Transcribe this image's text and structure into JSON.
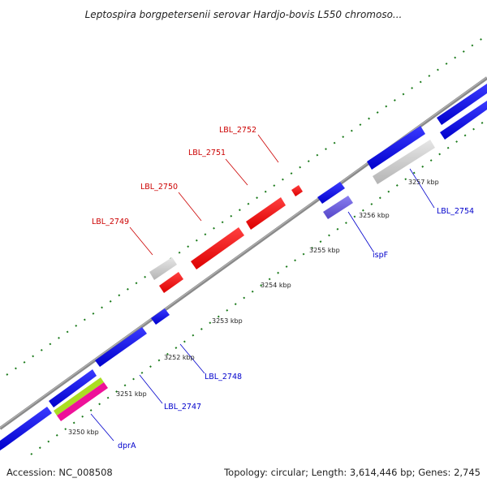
{
  "title": "Leptospira borgpetersenii serovar Hardjo-bovis L550 chromoso...",
  "footer": {
    "accession": "Accession: NC_008508",
    "summary": "Topology: circular; Length: 3,614,446 bp; Genes: 2,745"
  },
  "ticks": [
    "3250 kbp",
    "3251 kbp",
    "3252 kbp",
    "3253 kbp",
    "3254 kbp",
    "3255 kbp",
    "3256 kbp",
    "3257 kbp"
  ],
  "gene_labels": [
    {
      "text": "LBL_2752",
      "color": "#cc0000"
    },
    {
      "text": "LBL_2751",
      "color": "#cc0000"
    },
    {
      "text": "LBL_2750",
      "color": "#cc0000"
    },
    {
      "text": "LBL_2749",
      "color": "#cc0000"
    },
    {
      "text": "LBL_2754",
      "color": "#0000cc"
    },
    {
      "text": "ispF",
      "color": "#0000cc"
    },
    {
      "text": "LBL_2748",
      "color": "#0000cc"
    },
    {
      "text": "LBL_2747",
      "color": "#0000cc"
    },
    {
      "text": "dprA",
      "color": "#0000cc"
    }
  ],
  "colors": {
    "backbone": "#8a8a8a",
    "gc_skew_dots": "#1a7a1a",
    "cds_forward": "#0000ee",
    "cds_reverse": "#ff0000",
    "rna_gray": "#c8c8c8",
    "isp_purple": "#6a5acd",
    "rrna_pink": "#ee1199",
    "trna_green": "#aadd22"
  }
}
